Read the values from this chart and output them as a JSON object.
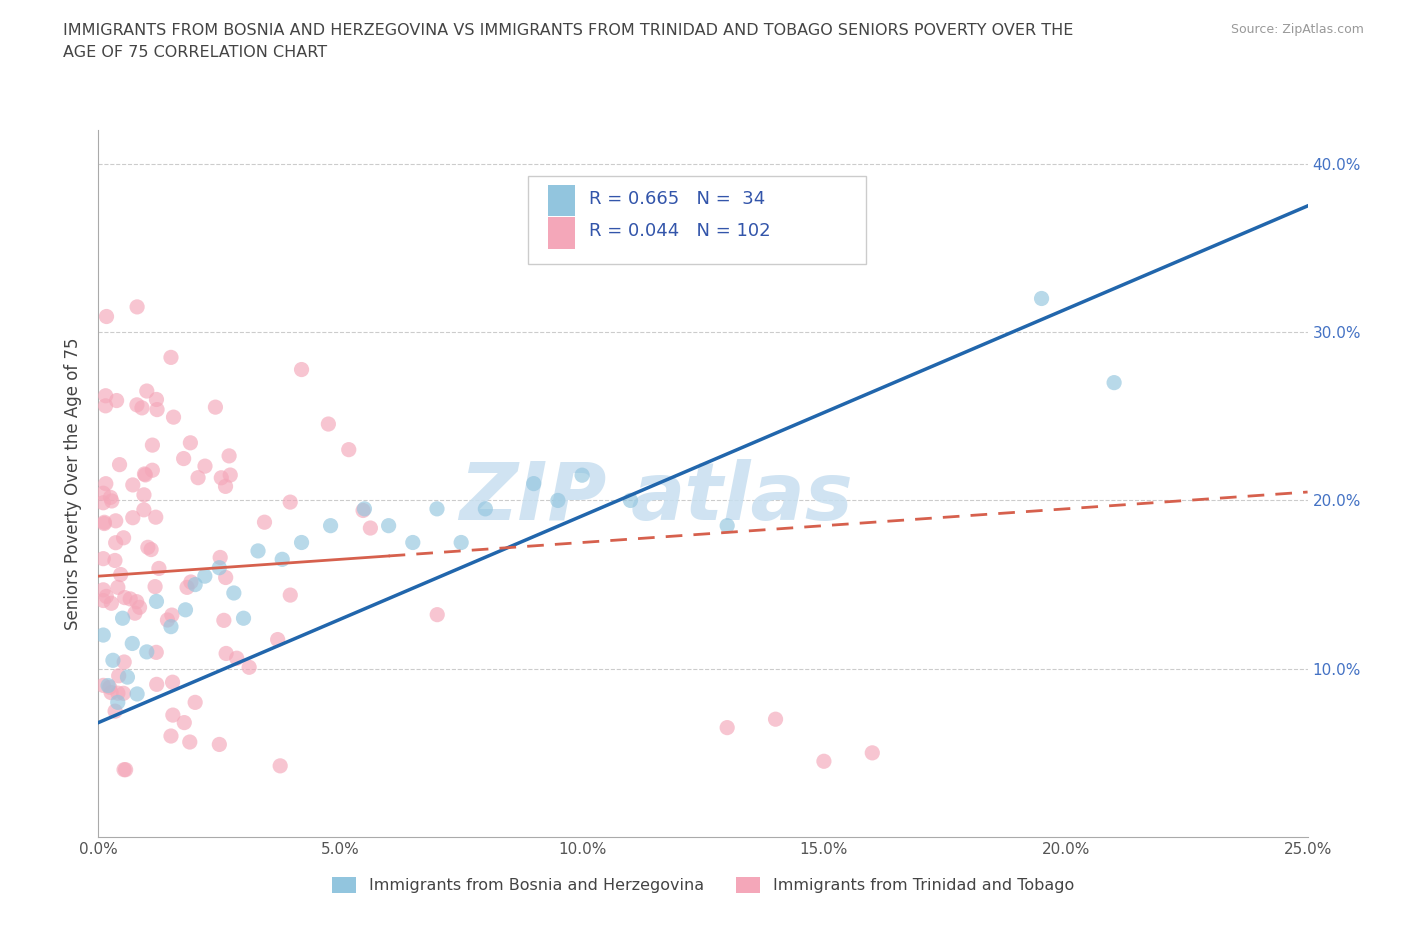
{
  "title": "IMMIGRANTS FROM BOSNIA AND HERZEGOVINA VS IMMIGRANTS FROM TRINIDAD AND TOBAGO SENIORS POVERTY OVER THE\nAGE OF 75 CORRELATION CHART",
  "source": "Source: ZipAtlas.com",
  "ylabel": "Seniors Poverty Over the Age of 75",
  "legend_label_1": "Immigrants from Bosnia and Herzegovina",
  "legend_label_2": "Immigrants from Trinidad and Tobago",
  "R1": 0.665,
  "N1": 34,
  "R2": 0.044,
  "N2": 102,
  "color1": "#92c5de",
  "color2": "#f4a7b9",
  "trendline1_color": "#2166ac",
  "trendline2_color": "#d6604d",
  "xlim": [
    0.0,
    0.25
  ],
  "ylim": [
    0.0,
    0.42
  ],
  "xticks": [
    0.0,
    0.05,
    0.1,
    0.15,
    0.2,
    0.25
  ],
  "xticklabels": [
    "0.0%",
    "5.0%",
    "10.0%",
    "15.0%",
    "20.0%",
    "25.0%"
  ],
  "yticks_right": [
    0.1,
    0.2,
    0.3,
    0.4
  ],
  "yticklabels_right": [
    "10.0%",
    "20.0%",
    "30.0%",
    "40.0%"
  ],
  "background_color": "#ffffff",
  "trendline1_x0": 0.0,
  "trendline1_y0": 0.068,
  "trendline1_x1": 0.25,
  "trendline1_y1": 0.375,
  "trendline2_x0": 0.0,
  "trendline2_y0": 0.155,
  "trendline2_x1": 0.25,
  "trendline2_y1": 0.205
}
